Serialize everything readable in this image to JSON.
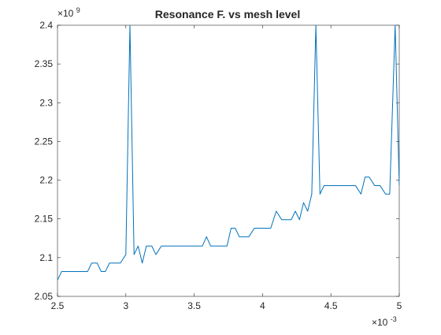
{
  "chart_data": {
    "type": "line",
    "title": "Resonance F. vs mesh level",
    "xlabel": "",
    "ylabel": "",
    "x_exponent_label": "×10",
    "x_exponent": "-3",
    "y_exponent_label": "×10",
    "y_exponent": "9",
    "xlim": [
      2.5,
      5.0
    ],
    "ylim": [
      2.05,
      2.4
    ],
    "x_ticks": [
      2.5,
      3,
      3.5,
      4,
      4.5,
      5
    ],
    "x_tick_labels": [
      "2.5",
      "3",
      "3.5",
      "4",
      "4.5",
      "5"
    ],
    "y_ticks": [
      2.05,
      2.1,
      2.15,
      2.2,
      2.25,
      2.3,
      2.35,
      2.4
    ],
    "y_tick_labels": [
      "2.05",
      "2.1",
      "2.15",
      "2.2",
      "2.25",
      "2.3",
      "2.35",
      "2.4"
    ],
    "grid": false,
    "legend": "none",
    "line_color": "#0072BD",
    "axis_color": "#262626",
    "series": [
      {
        "x": [
          2.5,
          2.53,
          2.56,
          2.6,
          2.64,
          2.68,
          2.72,
          2.75,
          2.79,
          2.82,
          2.85,
          2.88,
          2.92,
          2.96,
          3.0,
          3.03,
          3.06,
          3.09,
          3.12,
          3.15,
          3.19,
          3.22,
          3.26,
          3.29,
          3.33,
          3.36,
          3.4,
          3.44,
          3.48,
          3.52,
          3.56,
          3.59,
          3.62,
          3.66,
          3.7,
          3.74,
          3.77,
          3.8,
          3.83,
          3.86,
          3.9,
          3.94,
          3.98,
          4.02,
          4.06,
          4.1,
          4.14,
          4.18,
          4.21,
          4.24,
          4.27,
          4.3,
          4.33,
          4.36,
          4.39,
          4.42,
          4.45,
          4.48,
          4.52,
          4.56,
          4.6,
          4.64,
          4.68,
          4.72,
          4.75,
          4.78,
          4.82,
          4.86,
          4.9,
          4.93,
          4.97,
          5.0
        ],
        "y": [
          2.071,
          2.082,
          2.082,
          2.082,
          2.082,
          2.082,
          2.082,
          2.093,
          2.093,
          2.082,
          2.082,
          2.093,
          2.093,
          2.093,
          2.104,
          2.4,
          2.104,
          2.115,
          2.093,
          2.115,
          2.115,
          2.104,
          2.115,
          2.115,
          2.115,
          2.115,
          2.115,
          2.115,
          2.115,
          2.115,
          2.115,
          2.127,
          2.115,
          2.115,
          2.115,
          2.115,
          2.138,
          2.138,
          2.127,
          2.127,
          2.127,
          2.138,
          2.138,
          2.138,
          2.138,
          2.16,
          2.149,
          2.149,
          2.149,
          2.16,
          2.149,
          2.171,
          2.16,
          2.182,
          2.4,
          2.182,
          2.193,
          2.193,
          2.193,
          2.193,
          2.193,
          2.193,
          2.193,
          2.182,
          2.204,
          2.204,
          2.193,
          2.193,
          2.182,
          2.182,
          2.4,
          2.193
        ]
      }
    ]
  }
}
